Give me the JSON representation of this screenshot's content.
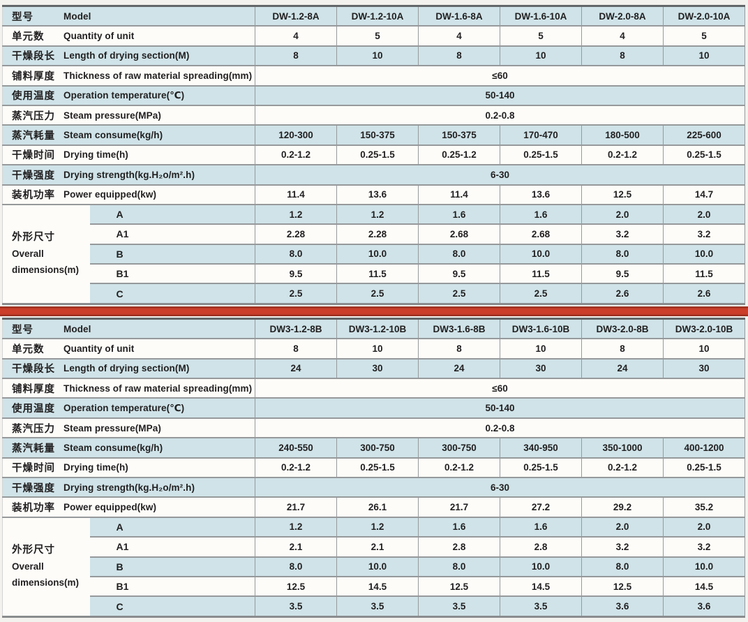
{
  "colors": {
    "row_blue": "#cfe3e8",
    "row_white": "#fdfcf8",
    "border_gray": "#96999b",
    "divider_red": "#cc3e2a",
    "text": "#222021"
  },
  "tables": [
    {
      "model_row": {
        "cn": "型号",
        "en": "Model",
        "models": [
          "DW-1.2-8A",
          "DW-1.2-10A",
          "DW-1.6-8A",
          "DW-1.6-10A",
          "DW-2.0-8A",
          "DW-2.0-10A"
        ]
      },
      "spec_rows": [
        {
          "cn": "单元数",
          "en": "Quantity of unit",
          "values": [
            "4",
            "5",
            "4",
            "5",
            "4",
            "5"
          ]
        },
        {
          "cn": "干燥段长",
          "en": "Length of drying section(M)",
          "values": [
            "8",
            "10",
            "8",
            "10",
            "8",
            "10"
          ]
        },
        {
          "cn": "铺料厚度",
          "en": "Thickness of raw material spreading(mm)",
          "merged": "≤60"
        },
        {
          "cn": "使用温度",
          "en": "Operation temperature(℃)",
          "merged": "50-140"
        },
        {
          "cn": "蒸汽压力",
          "en": "Steam pressure(MPa)",
          "merged": "0.2-0.8"
        },
        {
          "cn": "蒸汽耗量",
          "en": "Steam consume(kg/h)",
          "values": [
            "120-300",
            "150-375",
            "150-375",
            "170-470",
            "180-500",
            "225-600"
          ]
        },
        {
          "cn": "干燥时间",
          "en": "Drying time(h)",
          "values": [
            "0.2-1.2",
            "0.25-1.5",
            "0.25-1.2",
            "0.25-1.5",
            "0.2-1.2",
            "0.25-1.5"
          ]
        },
        {
          "cn": "干燥强度",
          "en": "Drying strength(kg.H₂o/m².h)",
          "merged": "6-30"
        },
        {
          "cn": "装机功率",
          "en": "Power equipped(kw)",
          "values": [
            "11.4",
            "13.6",
            "11.4",
            "13.6",
            "12.5",
            "14.7"
          ]
        }
      ],
      "dimensions": {
        "cn": "外形尺寸",
        "en_line1": "Overall",
        "en_line2": "dimensions(m)",
        "rows": [
          {
            "key": "A",
            "values": [
              "1.2",
              "1.2",
              "1.6",
              "1.6",
              "2.0",
              "2.0"
            ]
          },
          {
            "key": "A1",
            "values": [
              "2.28",
              "2.28",
              "2.68",
              "2.68",
              "3.2",
              "3.2"
            ]
          },
          {
            "key": "B",
            "values": [
              "8.0",
              "10.0",
              "8.0",
              "10.0",
              "8.0",
              "10.0"
            ]
          },
          {
            "key": "B1",
            "values": [
              "9.5",
              "11.5",
              "9.5",
              "11.5",
              "9.5",
              "11.5"
            ]
          },
          {
            "key": "C",
            "values": [
              "2.5",
              "2.5",
              "2.5",
              "2.5",
              "2.6",
              "2.6"
            ]
          }
        ]
      }
    },
    {
      "model_row": {
        "cn": "型号",
        "en": "Model",
        "models": [
          "DW3-1.2-8B",
          "DW3-1.2-10B",
          "DW3-1.6-8B",
          "DW3-1.6-10B",
          "DW3-2.0-8B",
          "DW3-2.0-10B"
        ]
      },
      "spec_rows": [
        {
          "cn": "单元数",
          "en": "Quantity of unit",
          "values": [
            "8",
            "10",
            "8",
            "10",
            "8",
            "10"
          ]
        },
        {
          "cn": "干燥段长",
          "en": "Length of drying section(M)",
          "values": [
            "24",
            "30",
            "24",
            "30",
            "24",
            "30"
          ]
        },
        {
          "cn": "铺料厚度",
          "en": "Thickness of raw material spreading(mm)",
          "merged": "≤60"
        },
        {
          "cn": "使用温度",
          "en": "Operation temperature(℃)",
          "merged": "50-140"
        },
        {
          "cn": "蒸汽压力",
          "en": "Steam pressure(MPa)",
          "merged": "0.2-0.8"
        },
        {
          "cn": "蒸汽耗量",
          "en": "Steam consume(kg/h)",
          "values": [
            "240-550",
            "300-750",
            "300-750",
            "340-950",
            "350-1000",
            "400-1200"
          ]
        },
        {
          "cn": "干燥时间",
          "en": "Drying time(h)",
          "values": [
            "0.2-1.2",
            "0.25-1.5",
            "0.2-1.2",
            "0.25-1.5",
            "0.2-1.2",
            "0.25-1.5"
          ]
        },
        {
          "cn": "干燥强度",
          "en": "Drying strength(kg.H₂o/m².h)",
          "merged": "6-30"
        },
        {
          "cn": "装机功率",
          "en": "Power equipped(kw)",
          "values": [
            "21.7",
            "26.1",
            "21.7",
            "27.2",
            "29.2",
            "35.2"
          ]
        }
      ],
      "dimensions": {
        "cn": "外形尺寸",
        "en_line1": "Overall",
        "en_line2": "dimensions(m)",
        "rows": [
          {
            "key": "A",
            "values": [
              "1.2",
              "1.2",
              "1.6",
              "1.6",
              "2.0",
              "2.0"
            ]
          },
          {
            "key": "A1",
            "values": [
              "2.1",
              "2.1",
              "2.8",
              "2.8",
              "3.2",
              "3.2"
            ]
          },
          {
            "key": "B",
            "values": [
              "8.0",
              "10.0",
              "8.0",
              "10.0",
              "8.0",
              "10.0"
            ]
          },
          {
            "key": "B1",
            "values": [
              "12.5",
              "14.5",
              "12.5",
              "14.5",
              "12.5",
              "14.5"
            ]
          },
          {
            "key": "C",
            "values": [
              "3.5",
              "3.5",
              "3.5",
              "3.5",
              "3.6",
              "3.6"
            ]
          }
        ]
      }
    }
  ]
}
